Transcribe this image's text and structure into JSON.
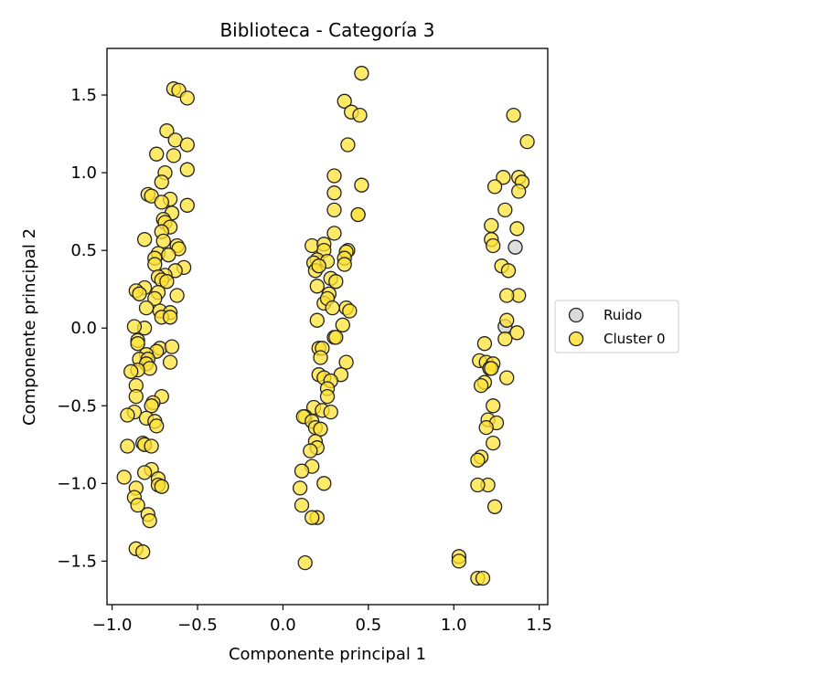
{
  "chart_data": {
    "type": "scatter",
    "title": "Biblioteca - Categoría 3",
    "xlabel": "Componente principal 1",
    "ylabel": "Componente principal 2",
    "xlim": [
      -1.03,
      1.55
    ],
    "ylim": [
      -1.78,
      1.8
    ],
    "xticks": [
      -1.0,
      -0.5,
      0.0,
      0.5,
      1.0,
      1.5
    ],
    "xtick_labels": [
      "−1.0",
      "−0.5",
      "0.0",
      "0.5",
      "1.0",
      "1.5"
    ],
    "yticks": [
      -1.5,
      -1.0,
      -0.5,
      0.0,
      0.5,
      1.0,
      1.5
    ],
    "ytick_labels": [
      "−1.5",
      "−1.0",
      "−0.5",
      "0.0",
      "0.5",
      "1.0",
      "1.5"
    ],
    "grid": false,
    "legend_position": "outside-right",
    "series": [
      {
        "name": "Ruido",
        "color": "#d3d3d3",
        "points": [
          [
            1.36,
            0.52
          ],
          [
            1.3,
            0.01
          ]
        ]
      },
      {
        "name": "Cluster 0",
        "color": "#ffe135",
        "points": [
          [
            -0.64,
            1.54
          ],
          [
            -0.61,
            1.53
          ],
          [
            -0.56,
            1.48
          ],
          [
            -0.68,
            1.27
          ],
          [
            -0.63,
            1.21
          ],
          [
            -0.56,
            1.18
          ],
          [
            -0.74,
            1.12
          ],
          [
            -0.64,
            1.11
          ],
          [
            -0.69,
            1.0
          ],
          [
            -0.56,
            1.02
          ],
          [
            -0.71,
            0.94
          ],
          [
            -0.79,
            0.86
          ],
          [
            -0.77,
            0.85
          ],
          [
            -0.66,
            0.83
          ],
          [
            -0.71,
            0.81
          ],
          [
            -0.56,
            0.79
          ],
          [
            -0.65,
            0.74
          ],
          [
            -0.7,
            0.7
          ],
          [
            -0.69,
            0.68
          ],
          [
            -0.66,
            0.65
          ],
          [
            -0.71,
            0.62
          ],
          [
            -0.81,
            0.57
          ],
          [
            -0.7,
            0.56
          ],
          [
            -0.62,
            0.53
          ],
          [
            -0.61,
            0.51
          ],
          [
            -0.73,
            0.48
          ],
          [
            -0.67,
            0.47
          ],
          [
            -0.75,
            0.45
          ],
          [
            -0.75,
            0.41
          ],
          [
            -0.58,
            0.39
          ],
          [
            -0.63,
            0.37
          ],
          [
            -0.69,
            0.34
          ],
          [
            -0.73,
            0.33
          ],
          [
            -0.71,
            0.31
          ],
          [
            -0.68,
            0.3
          ],
          [
            -0.81,
            0.26
          ],
          [
            -0.86,
            0.24
          ],
          [
            -0.84,
            0.22
          ],
          [
            -0.73,
            0.23
          ],
          [
            -0.75,
            0.19
          ],
          [
            -0.62,
            0.21
          ],
          [
            -0.8,
            0.13
          ],
          [
            -0.72,
            0.11
          ],
          [
            -0.66,
            0.1
          ],
          [
            -0.71,
            0.07
          ],
          [
            -0.66,
            0.07
          ],
          [
            -0.81,
            0.0
          ],
          [
            -0.87,
            0.01
          ],
          [
            -0.85,
            -0.08
          ],
          [
            -0.85,
            -0.1
          ],
          [
            -0.72,
            -0.13
          ],
          [
            -0.74,
            -0.15
          ],
          [
            -0.8,
            -0.17
          ],
          [
            -0.65,
            -0.12
          ],
          [
            -0.84,
            -0.2
          ],
          [
            -0.79,
            -0.2
          ],
          [
            -0.8,
            -0.23
          ],
          [
            -0.66,
            -0.22
          ],
          [
            -0.78,
            -0.26
          ],
          [
            -0.85,
            -0.27
          ],
          [
            -0.89,
            -0.28
          ],
          [
            -0.86,
            -0.37
          ],
          [
            -0.86,
            -0.44
          ],
          [
            -0.71,
            -0.44
          ],
          [
            -0.76,
            -0.48
          ],
          [
            -0.77,
            -0.5
          ],
          [
            -0.87,
            -0.54
          ],
          [
            -0.91,
            -0.56
          ],
          [
            -0.8,
            -0.58
          ],
          [
            -0.75,
            -0.6
          ],
          [
            -0.74,
            -0.63
          ],
          [
            -0.82,
            -0.74
          ],
          [
            -0.81,
            -0.75
          ],
          [
            -0.77,
            -0.76
          ],
          [
            -0.91,
            -0.76
          ],
          [
            -0.77,
            -0.91
          ],
          [
            -0.81,
            -0.93
          ],
          [
            -0.93,
            -0.96
          ],
          [
            -0.73,
            -0.97
          ],
          [
            -0.73,
            -1.01
          ],
          [
            -0.71,
            -1.02
          ],
          [
            -0.86,
            -1.03
          ],
          [
            -0.87,
            -1.09
          ],
          [
            -0.85,
            -1.14
          ],
          [
            -0.79,
            -1.2
          ],
          [
            -0.78,
            -1.24
          ],
          [
            -0.86,
            -1.42
          ],
          [
            -0.82,
            -1.44
          ],
          [
            0.46,
            1.64
          ],
          [
            0.36,
            1.46
          ],
          [
            0.4,
            1.39
          ],
          [
            0.45,
            1.37
          ],
          [
            0.38,
            1.18
          ],
          [
            0.3,
            0.98
          ],
          [
            0.46,
            0.92
          ],
          [
            0.3,
            0.87
          ],
          [
            0.3,
            0.76
          ],
          [
            0.44,
            0.73
          ],
          [
            0.44,
            0.73
          ],
          [
            0.3,
            0.61
          ],
          [
            0.17,
            0.53
          ],
          [
            0.24,
            0.54
          ],
          [
            0.38,
            0.5
          ],
          [
            0.37,
            0.49
          ],
          [
            0.24,
            0.5
          ],
          [
            0.2,
            0.44
          ],
          [
            0.18,
            0.42
          ],
          [
            0.36,
            0.45
          ],
          [
            0.26,
            0.43
          ],
          [
            0.19,
            0.37
          ],
          [
            0.36,
            0.41
          ],
          [
            0.21,
            0.4
          ],
          [
            0.28,
            0.32
          ],
          [
            0.2,
            0.27
          ],
          [
            0.31,
            0.3
          ],
          [
            0.27,
            0.22
          ],
          [
            0.24,
            0.16
          ],
          [
            0.26,
            0.19
          ],
          [
            0.37,
            0.13
          ],
          [
            0.39,
            0.11
          ],
          [
            0.29,
            0.13
          ],
          [
            0.2,
            0.05
          ],
          [
            0.35,
            0.02
          ],
          [
            0.3,
            -0.06
          ],
          [
            0.31,
            -0.06
          ],
          [
            0.21,
            -0.13
          ],
          [
            0.23,
            -0.13
          ],
          [
            0.22,
            -0.19
          ],
          [
            0.37,
            -0.22
          ],
          [
            0.34,
            -0.3
          ],
          [
            0.21,
            -0.3
          ],
          [
            0.24,
            -0.32
          ],
          [
            0.28,
            -0.34
          ],
          [
            0.26,
            -0.39
          ],
          [
            0.26,
            -0.44
          ],
          [
            0.18,
            -0.51
          ],
          [
            0.23,
            -0.53
          ],
          [
            0.28,
            -0.54
          ],
          [
            0.13,
            -0.57
          ],
          [
            0.12,
            -0.57
          ],
          [
            0.17,
            -0.6
          ],
          [
            0.19,
            -0.64
          ],
          [
            0.22,
            -0.65
          ],
          [
            0.19,
            -0.73
          ],
          [
            0.2,
            -0.77
          ],
          [
            0.16,
            -0.79
          ],
          [
            0.17,
            -0.89
          ],
          [
            0.11,
            -0.92
          ],
          [
            0.24,
            -1.0
          ],
          [
            0.1,
            -1.03
          ],
          [
            0.11,
            -1.14
          ],
          [
            0.2,
            -1.22
          ],
          [
            0.17,
            -1.22
          ],
          [
            0.13,
            -1.51
          ],
          [
            1.43,
            1.2
          ],
          [
            1.35,
            1.37
          ],
          [
            1.29,
            0.97
          ],
          [
            1.38,
            0.97
          ],
          [
            1.4,
            0.94
          ],
          [
            1.24,
            0.91
          ],
          [
            1.38,
            0.88
          ],
          [
            1.3,
            0.76
          ],
          [
            1.22,
            0.66
          ],
          [
            1.37,
            0.64
          ],
          [
            1.22,
            0.57
          ],
          [
            1.23,
            0.53
          ],
          [
            1.28,
            0.4
          ],
          [
            1.32,
            0.37
          ],
          [
            1.38,
            0.21
          ],
          [
            1.31,
            0.21
          ],
          [
            1.31,
            0.05
          ],
          [
            1.37,
            -0.03
          ],
          [
            1.3,
            -0.07
          ],
          [
            1.18,
            -0.1
          ],
          [
            1.15,
            -0.21
          ],
          [
            1.19,
            -0.22
          ],
          [
            1.23,
            -0.23
          ],
          [
            1.21,
            -0.26
          ],
          [
            1.22,
            -0.26
          ],
          [
            1.31,
            -0.32
          ],
          [
            1.18,
            -0.35
          ],
          [
            1.16,
            -0.37
          ],
          [
            1.23,
            -0.5
          ],
          [
            1.2,
            -0.59
          ],
          [
            1.25,
            -0.61
          ],
          [
            1.19,
            -0.64
          ],
          [
            1.23,
            -0.74
          ],
          [
            1.16,
            -0.83
          ],
          [
            1.14,
            -0.85
          ],
          [
            1.2,
            -1.01
          ],
          [
            1.14,
            -1.01
          ],
          [
            1.24,
            -1.15
          ],
          [
            1.03,
            -1.47
          ],
          [
            1.03,
            -1.5
          ],
          [
            1.14,
            -1.61
          ],
          [
            1.17,
            -1.61
          ]
        ]
      }
    ]
  }
}
